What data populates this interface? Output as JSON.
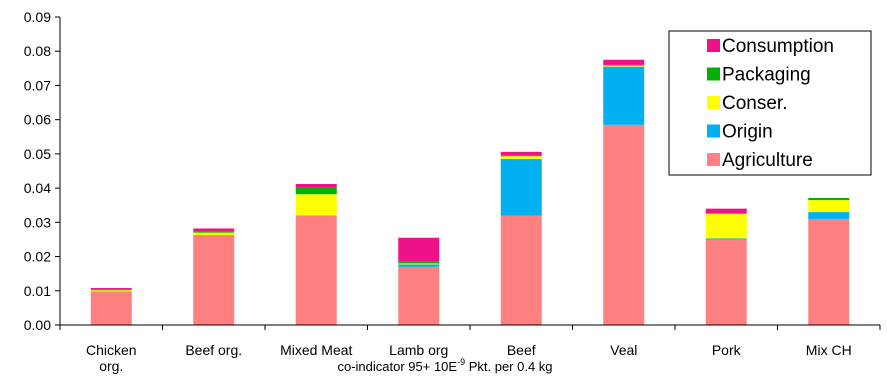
{
  "chart_data": {
    "type": "bar",
    "stacked": true,
    "categories": [
      "Chicken org.",
      "Beef org.",
      "Mixed Meat",
      "Lamb org",
      "Beef",
      "Veal",
      "Pork",
      "Mix CH"
    ],
    "category_lines": [
      [
        "Chicken",
        "org."
      ],
      [
        "Beef org."
      ],
      [
        "Mixed Meat"
      ],
      [
        "Lamb org"
      ],
      [
        "Beef"
      ],
      [
        "Veal"
      ],
      [
        "Pork"
      ],
      [
        "Mix CH"
      ]
    ],
    "series": [
      {
        "name": "Agriculture",
        "color": "#ff8080",
        "values": [
          0.0098,
          0.0263,
          0.032,
          0.017,
          0.032,
          0.0585,
          0.025,
          0.031
        ]
      },
      {
        "name": "Origin",
        "color": "#00b0f0",
        "values": [
          0.0,
          0.0,
          0.0,
          0.0007,
          0.0165,
          0.017,
          0.0003,
          0.002
        ]
      },
      {
        "name": "Conser.",
        "color": "#ffff00",
        "values": [
          0.0004,
          0.0007,
          0.0062,
          0.0003,
          0.0008,
          0.0003,
          0.0072,
          0.0035
        ]
      },
      {
        "name": "Packaging",
        "color": "#00b000",
        "values": [
          0.0001,
          0.0004,
          0.002,
          0.0005,
          0.0003,
          0.0002,
          0.0002,
          0.0006
        ]
      },
      {
        "name": "Consumption",
        "color": "#ee1188",
        "values": [
          0.0005,
          0.0008,
          0.001,
          0.007,
          0.001,
          0.0015,
          0.0013,
          0.0
        ]
      }
    ],
    "ylim": [
      0,
      0.09
    ],
    "yticks": [
      "0.00",
      "0.01",
      "0.02",
      "0.03",
      "0.04",
      "0.05",
      "0.06",
      "0.07",
      "0.08",
      "0.09"
    ],
    "xlabel_parts": {
      "main": "co-indicator 95+  10E",
      "sup": "-9",
      "rest": " Pkt. per 0.4 kg"
    },
    "title": "",
    "legend_position": "top-right",
    "grid": false
  }
}
